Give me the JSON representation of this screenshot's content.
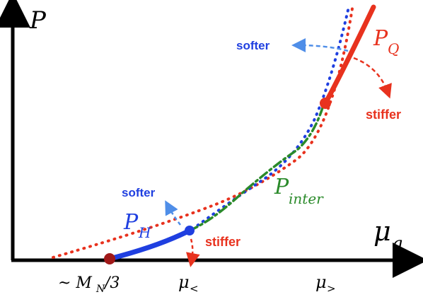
{
  "axes": {
    "y_label": "P",
    "x_label_main": "μ",
    "x_label_sub": "q"
  },
  "ticks": {
    "nucleon": {
      "prefix": "~ M",
      "sub": "N",
      "suffix": "/3"
    },
    "mu_less": {
      "main": "μ",
      "sub": "<"
    },
    "mu_greater": {
      "main": "μ",
      "sub": ">"
    }
  },
  "curves": {
    "hadronic": {
      "main": "P",
      "sub": "H"
    },
    "quark": {
      "main": "P",
      "sub": "Q"
    },
    "interpolated": {
      "main": "P",
      "sub": "inter"
    }
  },
  "annotations": {
    "softer_top": "softer",
    "stiffer_top": "stiffer",
    "softer_bottom": "softer",
    "stiffer_bottom": "stiffer"
  },
  "colors": {
    "axis": "#000000",
    "red": "#e8321e",
    "blue": "#1f3fe0",
    "green": "#2a8a2a",
    "dark_red_dot": "#a01818",
    "light_blue_arrow": "#4f8ee8"
  }
}
